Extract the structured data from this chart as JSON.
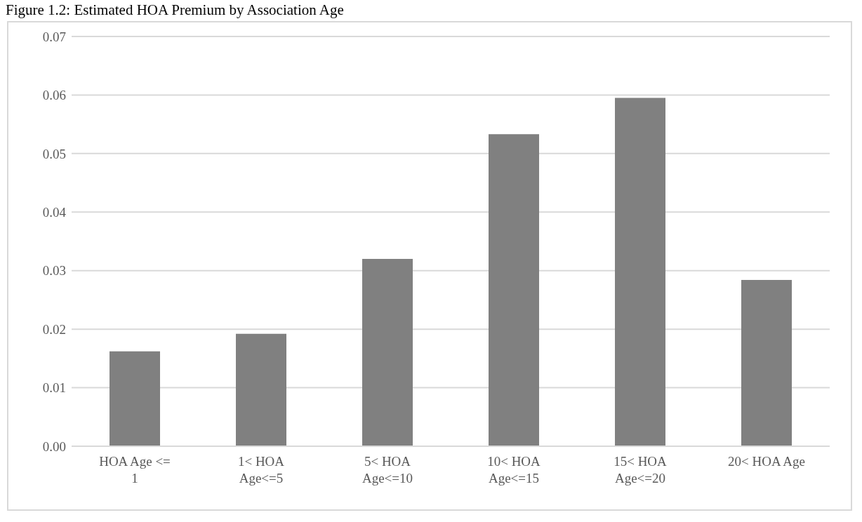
{
  "chart_data": {
    "type": "bar",
    "title": "Figure 1.2: Estimated HOA Premium by Association Age",
    "categories": [
      "HOA Age <= 1",
      "1< HOA Age<=5",
      "5< HOA Age<=10",
      "10< HOA Age<=15",
      "15< HOA Age<=20",
      "20< HOA Age"
    ],
    "values": [
      0.0162,
      0.0192,
      0.032,
      0.0533,
      0.0595,
      0.0284
    ],
    "color": "#808080",
    "ylim": [
      0,
      0.07
    ],
    "yticks": [
      {
        "value": 0,
        "label": "0.00"
      },
      {
        "value": 0.01,
        "label": "0.01"
      },
      {
        "value": 0.02,
        "label": "0.02"
      },
      {
        "value": 0.03,
        "label": "0.03"
      },
      {
        "value": 0.04,
        "label": "0.04"
      },
      {
        "value": 0.05,
        "label": "0.05"
      },
      {
        "value": 0.06,
        "label": "0.06"
      },
      {
        "value": 0.07,
        "label": "0.07"
      }
    ],
    "grid": "y"
  }
}
